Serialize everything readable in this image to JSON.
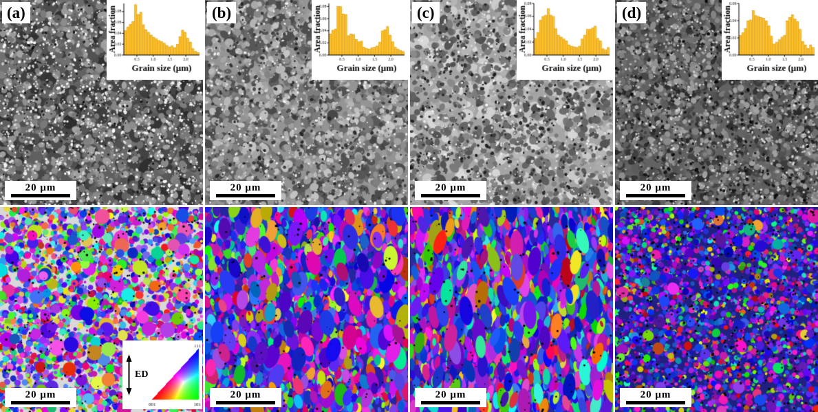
{
  "figure": {
    "panels": [
      {
        "id": "a",
        "label": "(a)",
        "scale_bar": "20 μm"
      },
      {
        "id": "b",
        "label": "(b)",
        "scale_bar": "20 μm"
      },
      {
        "id": "c",
        "label": "(c)",
        "scale_bar": "20 μm"
      },
      {
        "id": "d",
        "label": "(d)",
        "scale_bar": "20 μm"
      }
    ],
    "ipf_legend": {
      "arrow_label": "ED",
      "corner_bottom_left": "001",
      "corner_bottom_right": "101",
      "corner_top_right": "111"
    },
    "histogram_style": {
      "bar_color": "#FFC125",
      "bar_edge": "#D08E00",
      "axis_color": "#000000",
      "background": "#FFFFFF"
    }
  },
  "chart_data": [
    {
      "type": "bar",
      "panel": "a",
      "title": "",
      "xlabel": "Grain size (μm)",
      "ylabel": "Area fraction",
      "x_start": 0.1,
      "bin_width": 0.08,
      "x_ticks": [
        0.5,
        1.0,
        1.5,
        2.0
      ],
      "y_ticks": [
        0.0,
        0.02,
        0.04,
        0.06,
        0.08
      ],
      "ylim": [
        0,
        0.095
      ],
      "values": [
        0.045,
        0.052,
        0.057,
        0.062,
        0.093,
        0.075,
        0.079,
        0.056,
        0.047,
        0.042,
        0.037,
        0.033,
        0.03,
        0.027,
        0.025,
        0.022,
        0.018,
        0.015,
        0.017,
        0.014,
        0.02,
        0.034,
        0.046,
        0.042,
        0.031,
        0.024,
        0.012,
        0.007,
        0.005
      ]
    },
    {
      "type": "bar",
      "panel": "b",
      "title": "",
      "xlabel": "Grain size (μm)",
      "ylabel": "Area fraction",
      "x_start": 0.1,
      "bin_width": 0.08,
      "x_ticks": [
        0.5,
        1.0,
        1.5,
        2.0
      ],
      "y_ticks": [
        0.0,
        0.02,
        0.04,
        0.06,
        0.08
      ],
      "ylim": [
        0,
        0.085
      ],
      "values": [
        0.035,
        0.041,
        0.043,
        0.08,
        0.08,
        0.068,
        0.067,
        0.032,
        0.035,
        0.034,
        0.026,
        0.022,
        0.023,
        0.013,
        0.011,
        0.01,
        0.012,
        0.013,
        0.015,
        0.021,
        0.04,
        0.042,
        0.047,
        0.033,
        0.022,
        0.013,
        0.01,
        0.008,
        0.006
      ]
    },
    {
      "type": "bar",
      "panel": "c",
      "title": "",
      "xlabel": "Grain size (μm)",
      "ylabel": "Area fraction",
      "x_start": 0.1,
      "bin_width": 0.08,
      "x_ticks": [
        0.5,
        1.0,
        1.5,
        2.0
      ],
      "y_ticks": [
        0.0,
        0.02,
        0.04,
        0.06,
        0.08
      ],
      "ylim": [
        0,
        0.08
      ],
      "values": [
        0.026,
        0.035,
        0.054,
        0.06,
        0.062,
        0.072,
        0.062,
        0.06,
        0.041,
        0.031,
        0.028,
        0.025,
        0.022,
        0.016,
        0.014,
        0.013,
        0.012,
        0.014,
        0.025,
        0.031,
        0.04,
        0.04,
        0.042,
        0.045,
        0.026,
        0.022,
        0.01,
        0.008,
        0.012
      ]
    },
    {
      "type": "bar",
      "panel": "d",
      "title": "",
      "xlabel": "Grain size (μm)",
      "ylabel": "Area fraction",
      "x_start": 0.1,
      "bin_width": 0.08,
      "x_ticks": [
        0.5,
        1.0,
        1.5,
        2.0
      ],
      "y_ticks": [
        0.0,
        0.02,
        0.04,
        0.06
      ],
      "ylim": [
        0,
        0.06
      ],
      "values": [
        0.023,
        0.026,
        0.031,
        0.04,
        0.041,
        0.052,
        0.046,
        0.045,
        0.044,
        0.043,
        0.04,
        0.034,
        0.022,
        0.013,
        0.015,
        0.018,
        0.021,
        0.023,
        0.04,
        0.044,
        0.047,
        0.042,
        0.039,
        0.03,
        0.016,
        0.012,
        0.008,
        0.012,
        0.009
      ]
    }
  ]
}
